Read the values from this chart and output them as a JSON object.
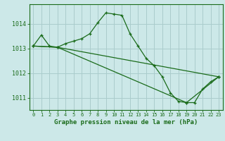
{
  "title": "Graphe pression niveau de la mer (hPa)",
  "bg_color": "#cce8e8",
  "grid_color": "#aacccc",
  "line_color": "#1a6b1a",
  "xlim": [
    -0.5,
    23.5
  ],
  "ylim": [
    1010.5,
    1014.8
  ],
  "yticks": [
    1011,
    1012,
    1013,
    1014
  ],
  "xticks": [
    0,
    1,
    2,
    3,
    4,
    5,
    6,
    7,
    8,
    9,
    10,
    11,
    12,
    13,
    14,
    15,
    16,
    17,
    18,
    19,
    20,
    21,
    22,
    23
  ],
  "series1_x": [
    0,
    1,
    2,
    3,
    4,
    5,
    6,
    7,
    8,
    9,
    10,
    11,
    12,
    13,
    14,
    15,
    16,
    17,
    18,
    19,
    20,
    21,
    22,
    23
  ],
  "series1_y": [
    1013.1,
    1013.55,
    1013.1,
    1013.05,
    1013.2,
    1013.3,
    1013.4,
    1013.6,
    1014.05,
    1014.45,
    1014.4,
    1014.35,
    1013.6,
    1013.1,
    1012.6,
    1012.3,
    1011.85,
    1011.2,
    1010.85,
    1010.8,
    1010.8,
    1011.35,
    1011.65,
    1011.85
  ],
  "series2_x": [
    0,
    3,
    23
  ],
  "series2_y": [
    1013.1,
    1013.05,
    1011.85
  ],
  "series3_x": [
    0,
    3,
    19,
    23
  ],
  "series3_y": [
    1013.1,
    1013.05,
    1010.8,
    1011.85
  ]
}
